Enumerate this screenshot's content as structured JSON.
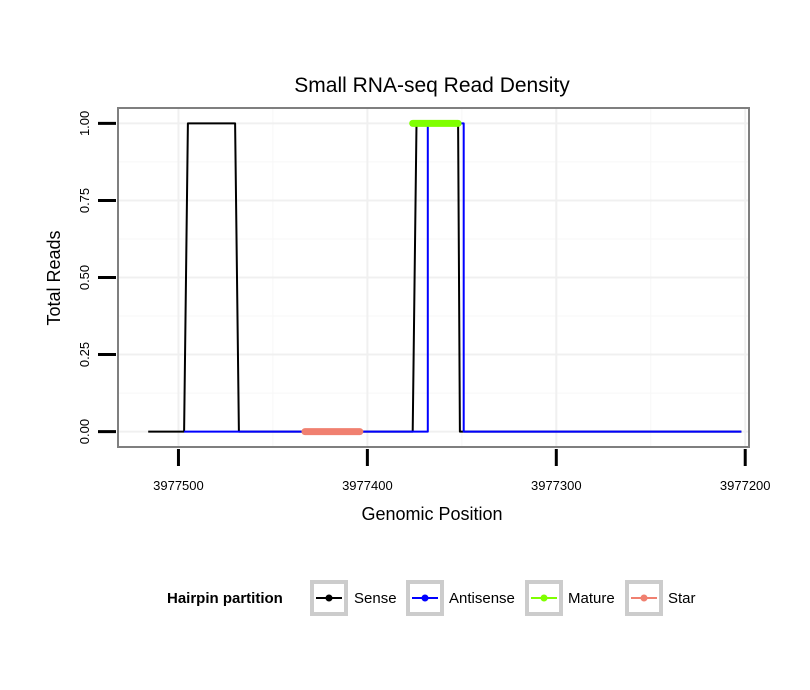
{
  "chart_data": {
    "type": "line",
    "title": "Small RNA-seq Read Density",
    "xlabel": "Genomic Position",
    "ylabel": "Total Reads",
    "xlim": [
      3977532,
      3977198
    ],
    "ylim": [
      -0.05,
      1.05
    ],
    "x_reversed": true,
    "x_ticks": [
      3977500,
      3977400,
      3977300,
      3977200
    ],
    "x_tick_labels": [
      "3977500",
      "3977400",
      "3977300",
      "3977200"
    ],
    "y_ticks": [
      0,
      0.25,
      0.5,
      0.75,
      1
    ],
    "y_tick_labels": [
      "0.00",
      "0.25",
      "0.50",
      "0.75",
      "1.00"
    ],
    "grid": true,
    "series": [
      {
        "name": "Sense",
        "color": "#000000",
        "width": 2,
        "x": [
          3977516,
          3977497,
          3977495,
          3977470,
          3977468,
          3977376,
          3977374,
          3977352,
          3977351,
          3977202
        ],
        "y": [
          0,
          0,
          1,
          1,
          0,
          0,
          1,
          1,
          0,
          0
        ]
      },
      {
        "name": "Antisense",
        "color": "#0000ff",
        "width": 2,
        "x": [
          3977497,
          3977468,
          3977368,
          3977368,
          3977349,
          3977349,
          3977202
        ],
        "y": [
          0,
          0,
          0,
          1,
          1,
          0,
          0
        ]
      },
      {
        "name": "Mature",
        "color": "#7fff00",
        "width": 7,
        "x": [
          3977376,
          3977352
        ],
        "y": [
          1,
          1
        ]
      },
      {
        "name": "Star",
        "color": "#f08070",
        "width": 7,
        "x": [
          3977433,
          3977404
        ],
        "y": [
          0,
          0
        ]
      }
    ],
    "legend": {
      "title": "Hairpin partition",
      "position": "bottom",
      "entries": [
        {
          "label": "Sense",
          "color": "#000000"
        },
        {
          "label": "Antisense",
          "color": "#0000ff"
        },
        {
          "label": "Mature",
          "color": "#7fff00"
        },
        {
          "label": "Star",
          "color": "#f08070"
        }
      ]
    }
  }
}
